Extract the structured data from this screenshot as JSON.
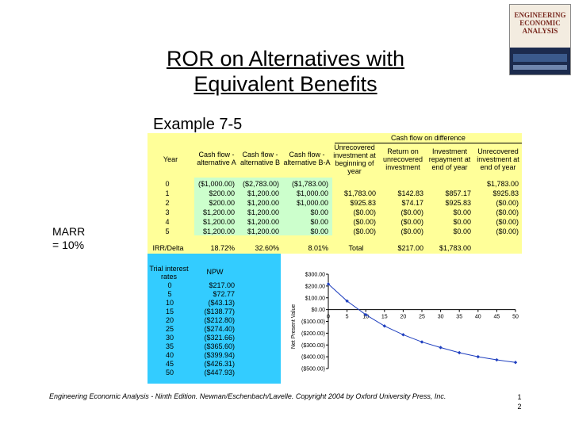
{
  "slide": {
    "title_line1": "ROR on Alternatives with",
    "title_line2": "Equivalent Benefits",
    "subtitle": "Example 7-5",
    "marr_line1": "MARR",
    "marr_line2": "= 10%",
    "footer": "Engineering Economic Analysis - Ninth Edition. Newnan/Eschenbach/Lavelle. Copyright 2004 by Oxford University Press, Inc.",
    "page_line1": "1",
    "page_line2": "2"
  },
  "cover": {
    "title": "ENGINEERING ECONOMIC ANALYSIS"
  },
  "table": {
    "group_header": "Cash flow on difference",
    "headers": [
      "Year",
      "Cash flow - alternative A",
      "Cash flow - alternative B",
      "Cash flow - alternative B-A",
      "Unrecovered investment at beginning of year",
      "Return on unrecovered investment",
      "Investment repayment at end of year",
      "Unrecovered investment at end of year"
    ],
    "rows": [
      [
        "0",
        "($1,000.00)",
        "($2,783.00)",
        "($1,783.00)",
        "",
        "",
        "",
        "$1,783.00"
      ],
      [
        "1",
        "$200.00",
        "$1,200.00",
        "$1,000.00",
        "$1,783.00",
        "$142.83",
        "$857.17",
        "$925.83"
      ],
      [
        "2",
        "$200.00",
        "$1,200.00",
        "$1,000.00",
        "$925.83",
        "$74.17",
        "$925.83",
        "($0.00)"
      ],
      [
        "3",
        "$1,200.00",
        "$1,200.00",
        "$0.00",
        "($0.00)",
        "($0.00)",
        "$0.00",
        "($0.00)"
      ],
      [
        "4",
        "$1,200.00",
        "$1,200.00",
        "$0.00",
        "($0.00)",
        "($0.00)",
        "$0.00",
        "($0.00)"
      ],
      [
        "5",
        "$1,200.00",
        "$1,200.00",
        "$0.00",
        "($0.00)",
        "($0.00)",
        "$0.00",
        "($0.00)"
      ]
    ],
    "irr_row": [
      "IRR/Delta",
      "18.72%",
      "32.60%",
      "8.01%",
      "Total",
      "$217.00",
      "$1,783.00"
    ]
  },
  "npw_table": {
    "header_rate": "Trial interest rates",
    "header_npw": "NPW",
    "rows": [
      [
        "0",
        "$217.00"
      ],
      [
        "5",
        "$72.77"
      ],
      [
        "10",
        "($43.13)"
      ],
      [
        "15",
        "($138.77)"
      ],
      [
        "20",
        "($212.80)"
      ],
      [
        "25",
        "($274.40)"
      ],
      [
        "30",
        "($321.66)"
      ],
      [
        "35",
        "($365.60)"
      ],
      [
        "40",
        "($399.94)"
      ],
      [
        "45",
        "($426.31)"
      ],
      [
        "50",
        "($447.93)"
      ]
    ]
  },
  "chart_data": {
    "type": "line",
    "title": "",
    "xlabel": "",
    "ylabel": "Net Present Value",
    "x": [
      0,
      5,
      10,
      15,
      20,
      25,
      30,
      35,
      40,
      45,
      50
    ],
    "series": [
      {
        "values": [
          217.0,
          72.77,
          -43.13,
          -138.77,
          -212.8,
          -274.4,
          -321.66,
          -365.6,
          -399.94,
          -426.31,
          -447.93
        ]
      }
    ],
    "xlim": [
      0,
      50
    ],
    "ylim": [
      -500,
      300
    ],
    "x_ticks": [
      "0",
      "5",
      "10",
      "15",
      "20",
      "25",
      "30",
      "35",
      "40",
      "45",
      "50"
    ],
    "y_ticks": [
      "$300.00",
      "$200.00",
      "$100.00",
      "$0.00",
      "($100.00)",
      "($200.00)",
      "($300.00)",
      "($400.00)",
      "($500.00)"
    ],
    "y_tick_values": [
      300,
      200,
      100,
      0,
      -100,
      -200,
      -300,
      -400,
      -500
    ],
    "line_color": "#1f3fbf",
    "marker": "diamond",
    "grid": false
  }
}
